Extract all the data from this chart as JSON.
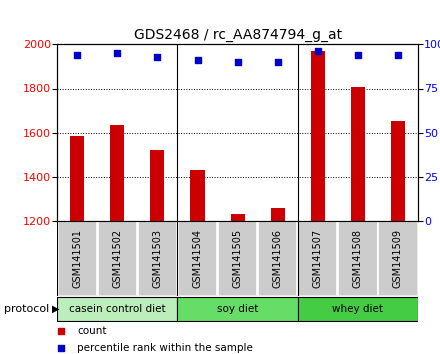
{
  "title": "GDS2468 / rc_AA874794_g_at",
  "samples": [
    "GSM141501",
    "GSM141502",
    "GSM141503",
    "GSM141504",
    "GSM141505",
    "GSM141506",
    "GSM141507",
    "GSM141508",
    "GSM141509"
  ],
  "counts": [
    1585,
    1635,
    1520,
    1430,
    1235,
    1260,
    1970,
    1805,
    1655
  ],
  "percentile_ranks": [
    94,
    95,
    93,
    91,
    90,
    90,
    96,
    94,
    94
  ],
  "ylim_left": [
    1200,
    2000
  ],
  "ylim_right": [
    0,
    100
  ],
  "yticks_left": [
    1200,
    1400,
    1600,
    1800,
    2000
  ],
  "yticks_right": [
    0,
    25,
    50,
    75,
    100
  ],
  "groups": [
    {
      "label": "casein control diet",
      "start": 0,
      "end": 3,
      "color": "#bbeebb"
    },
    {
      "label": "soy diet",
      "start": 3,
      "end": 6,
      "color": "#66dd66"
    },
    {
      "label": "whey diet",
      "start": 6,
      "end": 9,
      "color": "#44cc44"
    }
  ],
  "bar_color": "#cc0000",
  "dot_color": "#0000cc",
  "bar_width": 0.35,
  "sample_bg_color": "#cccccc",
  "protocol_label": "protocol",
  "legend_count_label": "count",
  "legend_pct_label": "percentile rank within the sample",
  "background_color": "#ffffff",
  "plot_bg_color": "#ffffff",
  "title_fontsize": 10,
  "tick_fontsize": 8,
  "label_fontsize": 7,
  "proto_fontsize": 7.5,
  "legend_fontsize": 7.5
}
